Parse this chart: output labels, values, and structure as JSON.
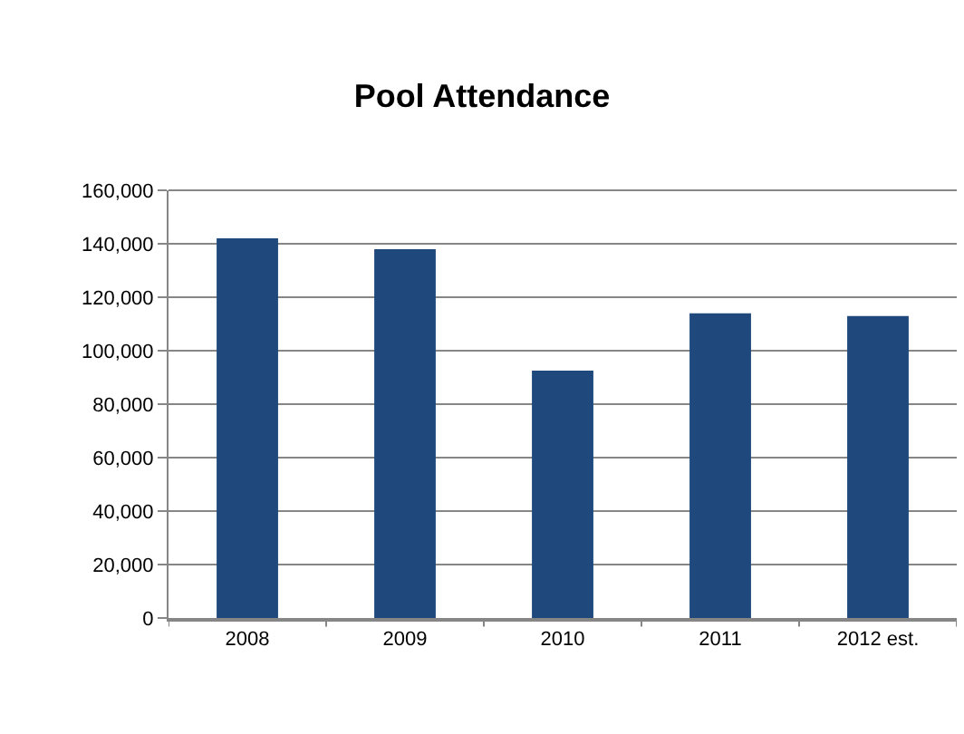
{
  "chart_data": {
    "type": "bar",
    "title": "Pool Attendance",
    "categories": [
      "2008",
      "2009",
      "2010",
      "2011",
      "2012 est."
    ],
    "values": [
      142000,
      138000,
      92500,
      114000,
      113000
    ],
    "color": "#1f497d",
    "ylim": [
      0,
      160000
    ],
    "yticks": [
      {
        "value": 0,
        "label": "0"
      },
      {
        "value": 20000,
        "label": "20,000"
      },
      {
        "value": 40000,
        "label": "40,000"
      },
      {
        "value": 60000,
        "label": "60,000"
      },
      {
        "value": 80000,
        "label": "80,000"
      },
      {
        "value": 100000,
        "label": "100,000"
      },
      {
        "value": 120000,
        "label": "120,000"
      },
      {
        "value": 140000,
        "label": "140,000"
      },
      {
        "value": 160000,
        "label": "160,000"
      }
    ],
    "grid": "y"
  }
}
